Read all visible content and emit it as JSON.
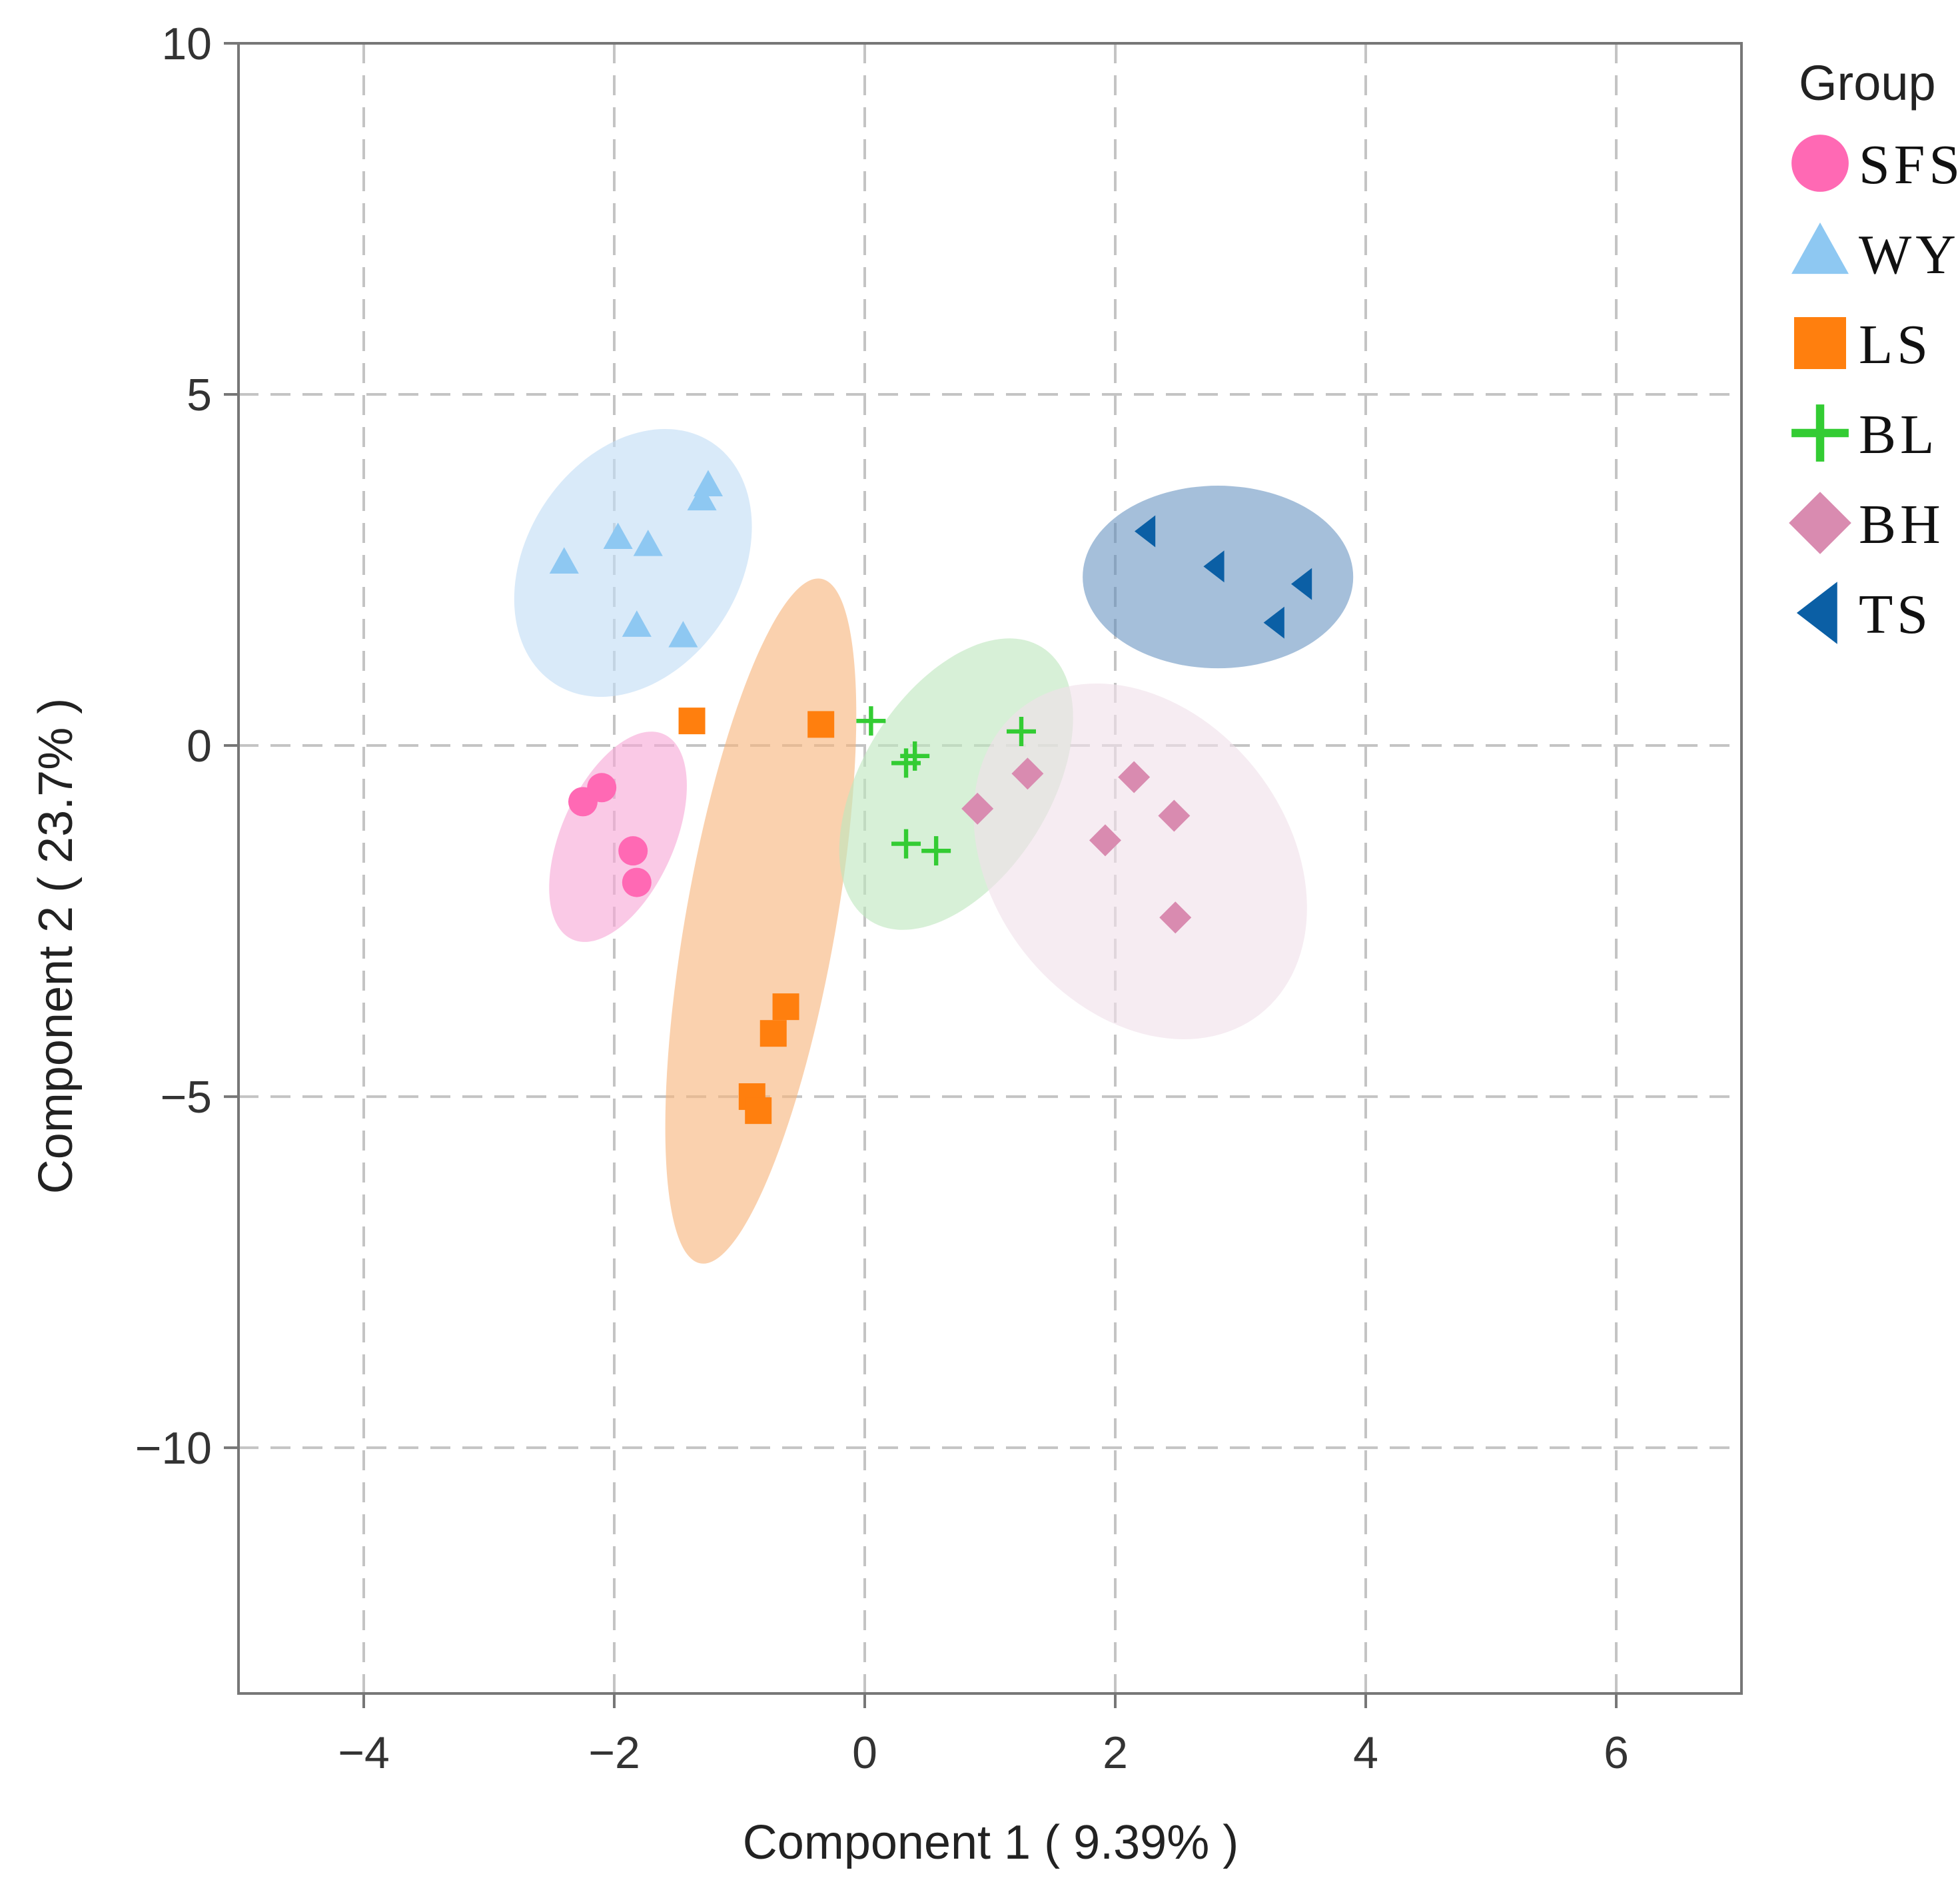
{
  "chart_data": {
    "type": "scatter",
    "xlabel": "Component 1 ( 9.39% )",
    "ylabel": "Component 2 ( 23.7% )",
    "xlim": [
      -5,
      7
    ],
    "ylim": [
      -13.5,
      10
    ],
    "xticks": [
      -4,
      -2,
      0,
      2,
      4,
      6
    ],
    "yticks": [
      10,
      5,
      0,
      -5,
      -10
    ],
    "xtick_labels": [
      "−4",
      "−2",
      "0",
      "2",
      "4",
      "6"
    ],
    "ytick_labels": [
      "10",
      "5",
      "0",
      "−5",
      "−10"
    ],
    "grid": true,
    "legend": {
      "title": "Group",
      "position": "right"
    },
    "series": [
      {
        "name": "SFS",
        "marker": "circle",
        "color": "#ff69b4",
        "ellipse_color": "#f7a8d6",
        "points": [
          [
            -2.25,
            -0.8
          ],
          [
            -2.1,
            -0.6
          ],
          [
            -1.85,
            -1.5
          ],
          [
            -1.82,
            -1.95
          ]
        ],
        "ellipse": {
          "cx": -1.97,
          "cy": -1.3,
          "rx": 0.45,
          "ry": 1.6,
          "angle": 24
        }
      },
      {
        "name": "WY",
        "marker": "triangle",
        "color": "#8ec8f2",
        "ellipse_color": "#c2ddf6",
        "points": [
          [
            -2.4,
            2.6
          ],
          [
            -1.97,
            2.95
          ],
          [
            -1.73,
            2.85
          ],
          [
            -1.82,
            1.7
          ],
          [
            -1.45,
            1.55
          ],
          [
            -1.3,
            3.5
          ],
          [
            -1.25,
            3.7
          ]
        ],
        "ellipse": {
          "cx": -1.85,
          "cy": 2.6,
          "rx": 0.85,
          "ry": 2.05,
          "angle": 33
        }
      },
      {
        "name": "LS",
        "marker": "square",
        "color": "#ff7f0e",
        "ellipse_color": "#f7b47c",
        "points": [
          [
            -1.38,
            0.35
          ],
          [
            -0.35,
            0.3
          ],
          [
            -0.63,
            -3.72
          ],
          [
            -0.73,
            -4.1
          ],
          [
            -0.9,
            -5.0
          ],
          [
            -0.85,
            -5.2
          ]
        ],
        "ellipse": {
          "cx": -0.83,
          "cy": -2.5,
          "rx": 0.6,
          "ry": 4.95,
          "angle": 10
        }
      },
      {
        "name": "BL",
        "marker": "plus",
        "color": "#33cc33",
        "ellipse_color": "#bfe6bf",
        "points": [
          [
            0.05,
            0.35
          ],
          [
            0.33,
            -0.25
          ],
          [
            0.4,
            -0.15
          ],
          [
            0.33,
            -1.4
          ],
          [
            0.57,
            -1.5
          ],
          [
            1.25,
            0.2
          ]
        ],
        "ellipse": {
          "cx": 0.73,
          "cy": -0.55,
          "rx": 0.75,
          "ry": 2.3,
          "angle": 32
        }
      },
      {
        "name": "BH",
        "marker": "diamond",
        "color": "#d98bb0",
        "ellipse_color": "#f1e0ea",
        "points": [
          [
            0.9,
            -0.9
          ],
          [
            1.3,
            -0.4
          ],
          [
            1.92,
            -1.35
          ],
          [
            2.15,
            -0.45
          ],
          [
            2.47,
            -1.0
          ],
          [
            2.48,
            -2.45
          ]
        ],
        "ellipse": {
          "cx": 2.2,
          "cy": -1.65,
          "rx": 1.55,
          "ry": 2.1,
          "angle": 52
        }
      },
      {
        "name": "TS",
        "marker": "triangle-left",
        "color": "#0b5fa5",
        "ellipse_color": "#5b8bbc",
        "points": [
          [
            2.25,
            3.05
          ],
          [
            2.8,
            2.55
          ],
          [
            3.28,
            1.75
          ],
          [
            3.5,
            2.3
          ]
        ],
        "ellipse": {
          "cx": 2.82,
          "cy": 2.4,
          "rx": 1.08,
          "ry": 1.3,
          "angle": 0
        }
      }
    ]
  }
}
